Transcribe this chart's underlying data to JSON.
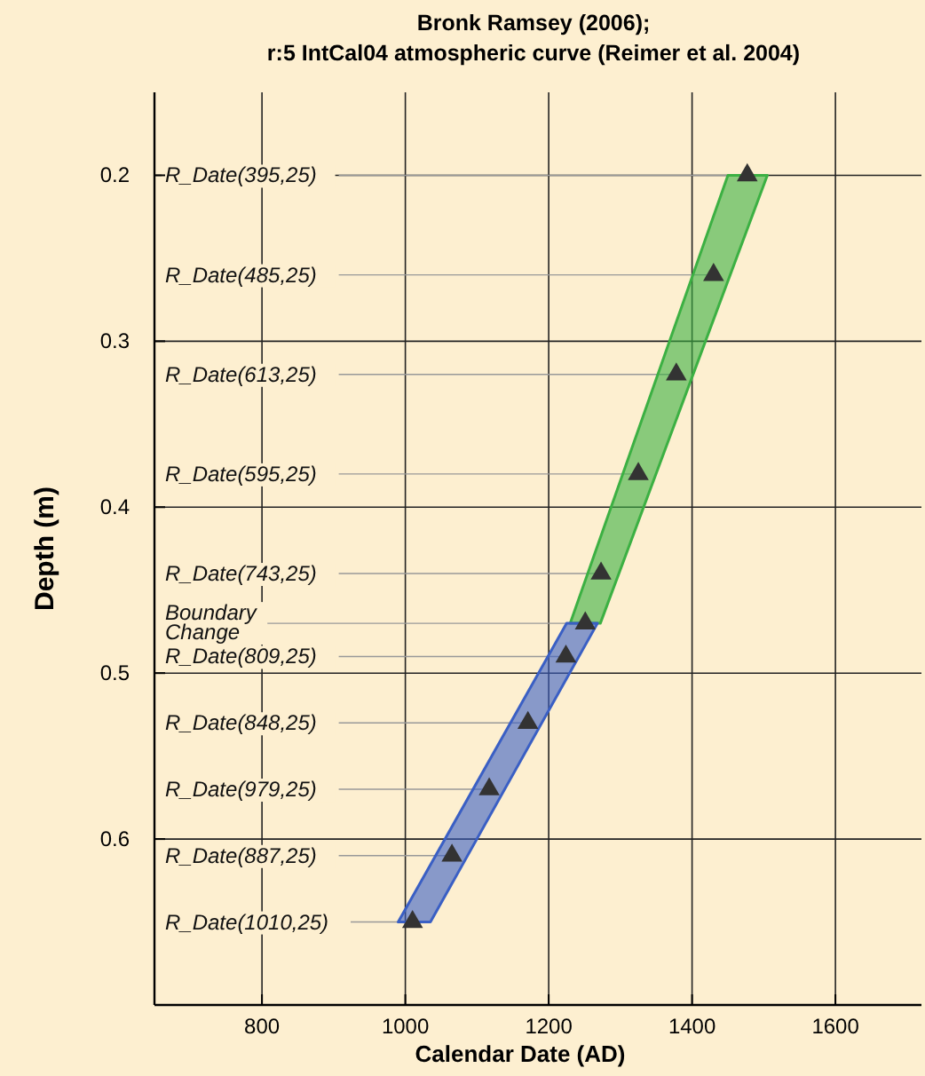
{
  "chart_data": {
    "type": "area",
    "title": "Bronk Ramsey (2006);",
    "subtitle": "r:5 IntCal04 atmospheric curve (Reimer et al. 2004)",
    "xlabel": "Calendar Date (AD)",
    "ylabel": "Depth (m)",
    "xlim": [
      650,
      1720
    ],
    "ylim": [
      0.7,
      0.15
    ],
    "xticks": [
      800,
      1000,
      1200,
      1400,
      1600
    ],
    "yticks": [
      0.2,
      0.3,
      0.4,
      0.5,
      0.6
    ],
    "grid": true,
    "series": [
      {
        "color": "#3cb043",
        "x": [
          1450,
          1230,
          1272,
          1505
        ],
        "values": [
          0.2,
          0.47,
          0.47,
          0.2
        ]
      },
      {
        "color": "#3a5fc4",
        "x": [
          1225,
          990,
          1035,
          1268
        ],
        "values": [
          0.47,
          0.65,
          0.65,
          0.47
        ]
      },
      {
        "type": "scatter",
        "color": "#333333",
        "marker": "triangle",
        "x": [
          1477,
          1430,
          1378,
          1325,
          1273,
          1251,
          1224,
          1171,
          1117,
          1065,
          1010
        ],
        "values": [
          0.2,
          0.26,
          0.32,
          0.38,
          0.44,
          0.47,
          0.49,
          0.53,
          0.57,
          0.61,
          0.65
        ]
      }
    ],
    "annotations": [
      {
        "text": "R_Date(395,25)",
        "x": 1477,
        "y": 0.2
      },
      {
        "text": "R_Date(485,25)",
        "x": 1430,
        "y": 0.26
      },
      {
        "text": "R_Date(613,25)",
        "x": 1378,
        "y": 0.32
      },
      {
        "text": "R_Date(595,25)",
        "x": 1325,
        "y": 0.38
      },
      {
        "text": "R_Date(743,25)",
        "x": 1273,
        "y": 0.44
      },
      {
        "text": "Boundary\nChange",
        "x": 1251,
        "y": 0.47
      },
      {
        "text": "R_Date(809,25)",
        "x": 1224,
        "y": 0.49
      },
      {
        "text": "R_Date(848,25)",
        "x": 1171,
        "y": 0.53
      },
      {
        "text": "R_Date(979,25)",
        "x": 1117,
        "y": 0.57
      },
      {
        "text": "R_Date(887,25)",
        "x": 1065,
        "y": 0.61
      },
      {
        "text": "R_Date(1010,25)",
        "x": 1010,
        "y": 0.65
      }
    ]
  }
}
